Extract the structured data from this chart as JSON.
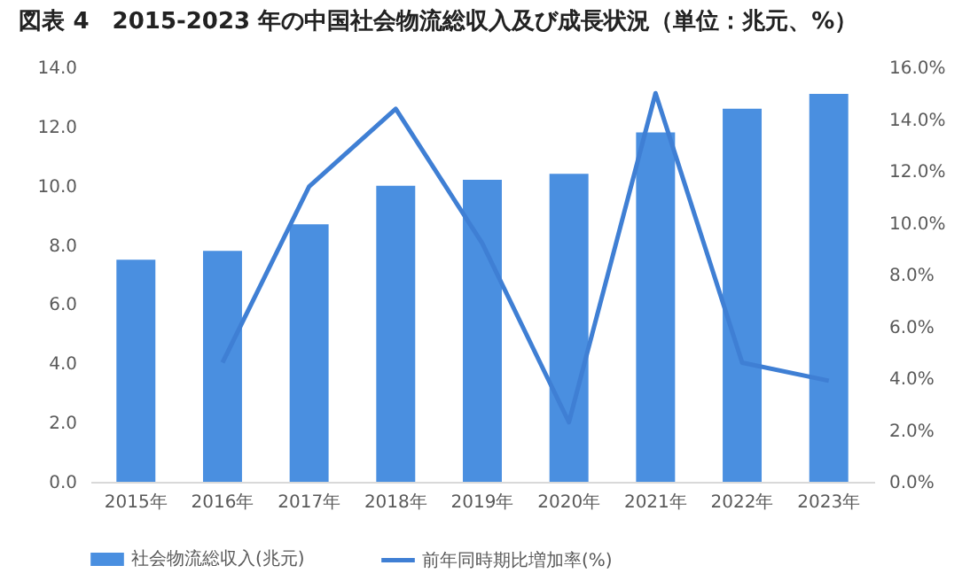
{
  "chart_data": {
    "type": "bar",
    "title": "図表 4　2015-2023 年の中国社会物流総収入及び成長状況（単位：兆元、%）",
    "categories": [
      "2015年",
      "2016年",
      "2017年",
      "2018年",
      "2019年",
      "2020年",
      "2021年",
      "2022年",
      "2023年"
    ],
    "series": [
      {
        "name": "社会物流総収入(兆元)",
        "color": "#4a8fe0",
        "values": [
          7.5,
          7.8,
          8.7,
          10.0,
          10.2,
          10.4,
          11.8,
          12.6,
          13.1
        ]
      },
      {
        "name": "前年同時期比増加率(%)",
        "type": "line",
        "axis": "y2",
        "color": "#3f7fd4",
        "values": [
          null,
          4.6,
          11.4,
          14.4,
          9.2,
          2.3,
          15.0,
          4.6,
          3.9
        ]
      }
    ],
    "ylim": [
      0,
      14
    ],
    "yticks": [
      {
        "value": 0,
        "label": "0.0"
      },
      {
        "value": 2,
        "label": "2.0"
      },
      {
        "value": 4,
        "label": "4.0"
      },
      {
        "value": 6,
        "label": "6.0"
      },
      {
        "value": 8,
        "label": "8.0"
      },
      {
        "value": 10,
        "label": "10.0"
      },
      {
        "value": 12,
        "label": "12.0"
      },
      {
        "value": 14,
        "label": "14.0"
      }
    ],
    "y2lim": [
      0,
      16
    ],
    "y2ticks": [
      {
        "value": 0,
        "label": "0.0%"
      },
      {
        "value": 2,
        "label": "2.0%"
      },
      {
        "value": 4,
        "label": "4.0%"
      },
      {
        "value": 6,
        "label": "6.0%"
      },
      {
        "value": 8,
        "label": "8.0%"
      },
      {
        "value": 10,
        "label": "10.0%"
      },
      {
        "value": 12,
        "label": "12.0%"
      },
      {
        "value": 14,
        "label": "14.0%"
      },
      {
        "value": 16,
        "label": "16.0%"
      }
    ],
    "grid": false,
    "legend": "bottom"
  }
}
